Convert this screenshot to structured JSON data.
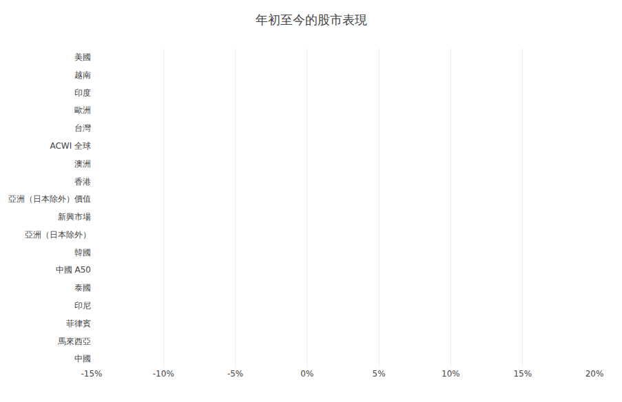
{
  "chart_data": {
    "type": "bar",
    "orientation": "horizontal",
    "title": "年初至今的股市表現",
    "categories": [
      "美國",
      "越南",
      "印度",
      "歐洲",
      "台灣",
      "ACWI 全球",
      "澳洲",
      "香港",
      "亞洲（日本除外）價值",
      "新興市場",
      "亞洲（日本除外）",
      "韓國",
      "中國 A50",
      "泰國",
      "印尼",
      "菲律賓",
      "馬來西亞",
      "中國"
    ],
    "values": [
      0,
      0,
      0,
      0,
      0,
      0,
      0,
      0,
      0,
      0,
      0,
      0,
      0,
      0,
      0,
      0,
      0,
      0
    ],
    "color": "#4d7fa8",
    "xlim": [
      -15,
      20
    ],
    "xticks": [
      {
        "value": -15,
        "label": "-15%"
      },
      {
        "value": -10,
        "label": "-10%"
      },
      {
        "value": -5,
        "label": "-5%"
      },
      {
        "value": 0,
        "label": "0%"
      },
      {
        "value": 5,
        "label": "5%"
      },
      {
        "value": 10,
        "label": "10%"
      },
      {
        "value": 15,
        "label": "15%"
      },
      {
        "value": 20,
        "label": "20%"
      }
    ],
    "grid": true
  }
}
